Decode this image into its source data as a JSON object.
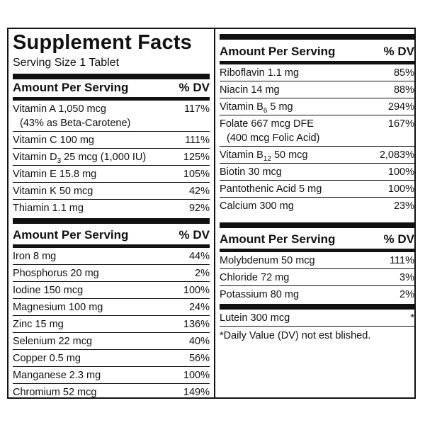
{
  "title": "Supplement Facts",
  "serving_size": "Serving Size 1 Tablet",
  "header_amount": "Amount Per Serving",
  "header_dv": "% DV",
  "left_section_1": [
    {
      "name": "Vitamin A 1,050 mcg",
      "sub": "(43% as Beta-Carotene)",
      "dv": "117%"
    },
    {
      "name": "Vitamin C 100 mg",
      "dv": "111%"
    },
    {
      "name_pre": "Vitamin D",
      "name_sub": "3",
      "name_post": " 25 mcg (1,000 IU)",
      "dv": "125%"
    },
    {
      "name": "Vitamin E  15.8 mg",
      "dv": "105%"
    },
    {
      "name": "Vitamin K 50 mcg",
      "dv": "42%"
    },
    {
      "name": "Thiamin 1.1 mg",
      "dv": "92%"
    }
  ],
  "left_section_2": [
    {
      "name": "Iron 8 mg",
      "dv": "44%"
    },
    {
      "name": "Phosphorus 20 mg",
      "dv": "2%"
    },
    {
      "name": "Iodine 150 mcg",
      "dv": "100%"
    },
    {
      "name": "Magnesium 100 mg",
      "dv": "24%"
    },
    {
      "name": "Zinc 15 mg",
      "dv": "136%"
    },
    {
      "name": "Selenium 22 mcg",
      "dv": "40%"
    },
    {
      "name": "Copper 0.5 mg",
      "dv": "56%"
    },
    {
      "name": "Manganese 2.3 mg",
      "dv": "100%"
    },
    {
      "name": "Chromium 52 mcg",
      "dv": "149%"
    }
  ],
  "right_section_1": [
    {
      "name": "Riboflavin 1.1 mg",
      "dv": "85%"
    },
    {
      "name": "Niacin 14 mg",
      "dv": "88%"
    },
    {
      "name_pre": "Vitamin B",
      "name_sub": "6",
      "name_post": " 5 mg",
      "dv": "294%"
    },
    {
      "name": "Folate 667 mcg DFE",
      "sub": "(400 mcg Folic Acid)",
      "dv": "167%"
    },
    {
      "name_pre": "Vitamin B",
      "name_sub": "12",
      "name_post": " 50 mcg",
      "dv": "2,083%"
    },
    {
      "name": "Biotin 30 mcg",
      "dv": "100%"
    },
    {
      "name": "Pantothenic Acid 5 mg",
      "dv": "100%"
    },
    {
      "name": "Calcium 300 mg",
      "dv": "23%"
    }
  ],
  "right_section_2": [
    {
      "name": "Molybdenum 50 mcg",
      "dv": "111%"
    },
    {
      "name": "Chloride 72 mg",
      "dv": "3%"
    },
    {
      "name": "Potassium 80 mg",
      "dv": "2%"
    }
  ],
  "right_section_3": [
    {
      "name": "Lutein 300 mcg",
      "dv": "*"
    }
  ],
  "footnote": "*Daily Value (DV) not est  blished."
}
